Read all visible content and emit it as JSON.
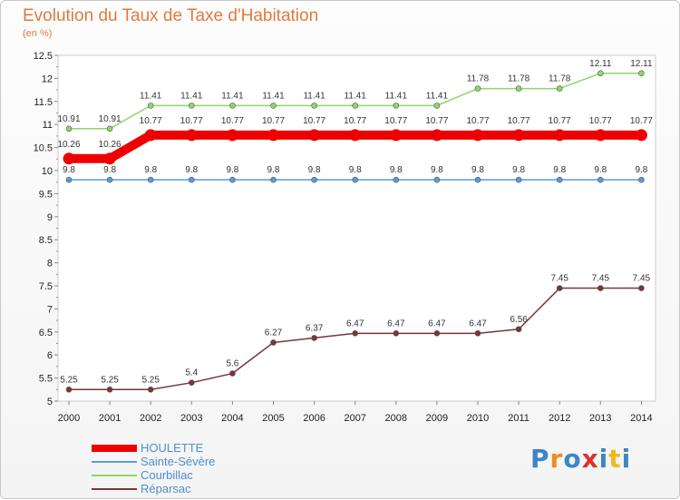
{
  "chart_data": {
    "type": "line",
    "title": "Evolution du Taux de Taxe d'Habitation",
    "ylabel": "(en %)",
    "xlabel": "",
    "ylim": [
      5,
      12.5
    ],
    "yticks": [
      "5",
      "5.5",
      "6",
      "6.5",
      "7",
      "7.5",
      "8",
      "8.5",
      "9",
      "9.5",
      "10",
      "10.5",
      "11",
      "11.5",
      "12",
      "12.5"
    ],
    "categories": [
      "2000",
      "2001",
      "2002",
      "2003",
      "2004",
      "2005",
      "2006",
      "2007",
      "2008",
      "2009",
      "2010",
      "2011",
      "2012",
      "2013",
      "2014"
    ],
    "series": [
      {
        "name": "HOULETTE",
        "color": "#ee0000",
        "values": [
          10.26,
          10.26,
          10.77,
          10.77,
          10.77,
          10.77,
          10.77,
          10.77,
          10.77,
          10.77,
          10.77,
          10.77,
          10.77,
          10.77,
          10.77
        ],
        "labels": [
          "10.26",
          "10.26",
          "10.77",
          "10.77",
          "10.77",
          "10.77",
          "10.77",
          "10.77",
          "10.77",
          "10.77",
          "10.77",
          "10.77",
          "10.77",
          "10.77",
          "10.77"
        ]
      },
      {
        "name": "Sainte-Sévère",
        "color": "#5b9bd5",
        "values": [
          9.8,
          9.8,
          9.8,
          9.8,
          9.8,
          9.8,
          9.8,
          9.8,
          9.8,
          9.8,
          9.8,
          9.8,
          9.8,
          9.8,
          9.8
        ],
        "labels": [
          "9.8",
          "9.8",
          "9.8",
          "9.8",
          "9.8",
          "9.8",
          "9.8",
          "9.8",
          "9.8",
          "9.8",
          "9.8",
          "9.8",
          "9.8",
          "9.8",
          "9.8"
        ]
      },
      {
        "name": "Courbillac",
        "color": "#8fd66a",
        "values": [
          10.91,
          10.91,
          11.41,
          11.41,
          11.41,
          11.41,
          11.41,
          11.41,
          11.41,
          11.41,
          11.78,
          11.78,
          11.78,
          12.11,
          12.11
        ],
        "labels": [
          "10.91",
          "10.91",
          "11.41",
          "11.41",
          "11.41",
          "11.41",
          "11.41",
          "11.41",
          "11.41",
          "11.41",
          "11.78",
          "11.78",
          "11.78",
          "12.11",
          "12.11"
        ]
      },
      {
        "name": "Réparsac",
        "color": "#7a3535",
        "values": [
          5.25,
          5.25,
          5.25,
          5.4,
          5.6,
          6.27,
          6.37,
          6.47,
          6.47,
          6.47,
          6.47,
          6.56,
          7.45,
          7.45,
          7.45
        ],
        "labels": [
          "5.25",
          "5.25",
          "5.25",
          "5.4",
          "5.6",
          "6.27",
          "6.37",
          "6.47",
          "6.47",
          "6.47",
          "6.47",
          "6.56",
          "7.45",
          "7.45",
          "7.45"
        ]
      }
    ]
  },
  "legend": {
    "items": [
      "HOULETTE",
      "Sainte-Sévère",
      "Courbillac",
      "Réparsac"
    ]
  },
  "logo": {
    "text": "Proxiti",
    "letter_colors": [
      "#3a86c8",
      "#f08a24",
      "#3a86c8",
      "#e03030",
      "#3a86c8",
      "#f0b820",
      "#3a86c8"
    ]
  }
}
